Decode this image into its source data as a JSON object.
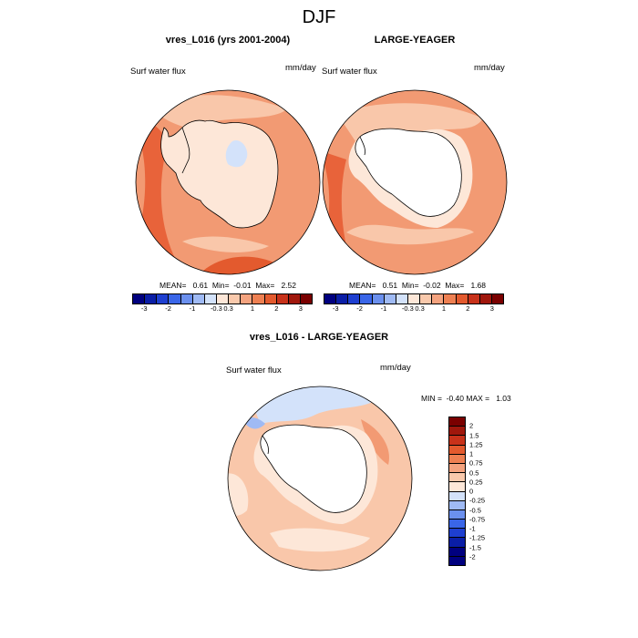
{
  "title": "DJF",
  "panels": [
    {
      "title": "vres_L016 (yrs 2001-2004)",
      "variable": "Surf water flux",
      "units": "mm/day",
      "stats": "MEAN=   0.61  Min=  -0.01  Max=   2.52"
    },
    {
      "title": "LARGE-YEAGER",
      "variable": "Surf water flux",
      "units": "mm/day",
      "stats": "MEAN=   0.51  Min=  -0.02  Max=   1.68"
    },
    {
      "title": "vres_L016 - LARGE-YEAGER",
      "variable": "Surf water flux",
      "units": "mm/day",
      "stats": "MIN =  -0.40 MAX =   1.03"
    }
  ],
  "colorbar_top": {
    "colors": [
      "#00007f",
      "#0a1ea6",
      "#1e3fd0",
      "#3a66e8",
      "#6b90ee",
      "#9fbaf4",
      "#d3e2fa",
      "#fde7d8",
      "#f9c9ac",
      "#f4a37f",
      "#ee8052",
      "#e35a2e",
      "#c8321a",
      "#a0170c",
      "#7a0000"
    ],
    "labels": [
      "-3",
      "-2",
      "-1",
      "-0.3",
      "0.3",
      "1",
      "2",
      "3"
    ]
  },
  "colorbar_diff": {
    "colors": [
      "#7a0000",
      "#a0170c",
      "#c8321a",
      "#e35a2e",
      "#ee8052",
      "#f4a37f",
      "#f9c9ac",
      "#fde7d8",
      "#d3e2fa",
      "#9fbaf4",
      "#6b90ee",
      "#3a66e8",
      "#1e3fd0",
      "#0a1ea6",
      "#00007f"
    ],
    "labels": [
      "2",
      "1.5",
      "1.25",
      "1",
      "0.75",
      "0.5",
      "0.25",
      "0",
      "-0.25",
      "-0.5",
      "-0.75",
      "-1",
      "-1.25",
      "-1.5",
      "-2"
    ]
  },
  "map_colors": {
    "ocean_pos_high": "#e8633a",
    "ocean_pos_mid": "#f29a73",
    "ocean_pos_low": "#f9c7aa",
    "near_zero": "#fde7d8",
    "negative": "#d3e2fa",
    "land": "#ffffff"
  }
}
